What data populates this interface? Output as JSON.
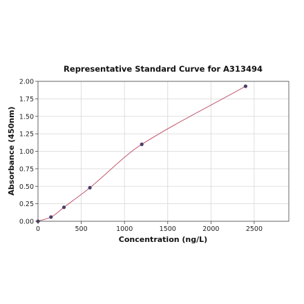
{
  "chart_data": {
    "type": "scatter",
    "title": "Representative Standard Curve for A313494",
    "xlabel": "Concentration (ng/L)",
    "ylabel": "Absorbance (450nm)",
    "xlim": [
      0,
      2900
    ],
    "ylim": [
      0,
      2.0
    ],
    "xticks": [
      0,
      500,
      1000,
      1500,
      2000,
      2500
    ],
    "xtick_labels": [
      "0",
      "500",
      "1000",
      "1500",
      "2000",
      "2500"
    ],
    "yticks": [
      0,
      0.25,
      0.5,
      0.75,
      1.0,
      1.25,
      1.5,
      1.75,
      2.0
    ],
    "ytick_labels": [
      "0.00",
      "0.25",
      "0.50",
      "0.75",
      "1.00",
      "1.25",
      "1.50",
      "1.75",
      "2.00"
    ],
    "grid": true,
    "series": [
      {
        "points": [
          {
            "x": 0,
            "y": 0.0
          },
          {
            "x": 150,
            "y": 0.06
          },
          {
            "x": 300,
            "y": 0.2
          },
          {
            "x": 600,
            "y": 0.48
          },
          {
            "x": 1200,
            "y": 1.1
          },
          {
            "x": 2400,
            "y": 1.93
          }
        ],
        "fit": "smooth curve"
      }
    ],
    "colors": {
      "points": "#4a3f6b",
      "curve": "#c0566b",
      "grid": "#d6d6d6"
    }
  }
}
